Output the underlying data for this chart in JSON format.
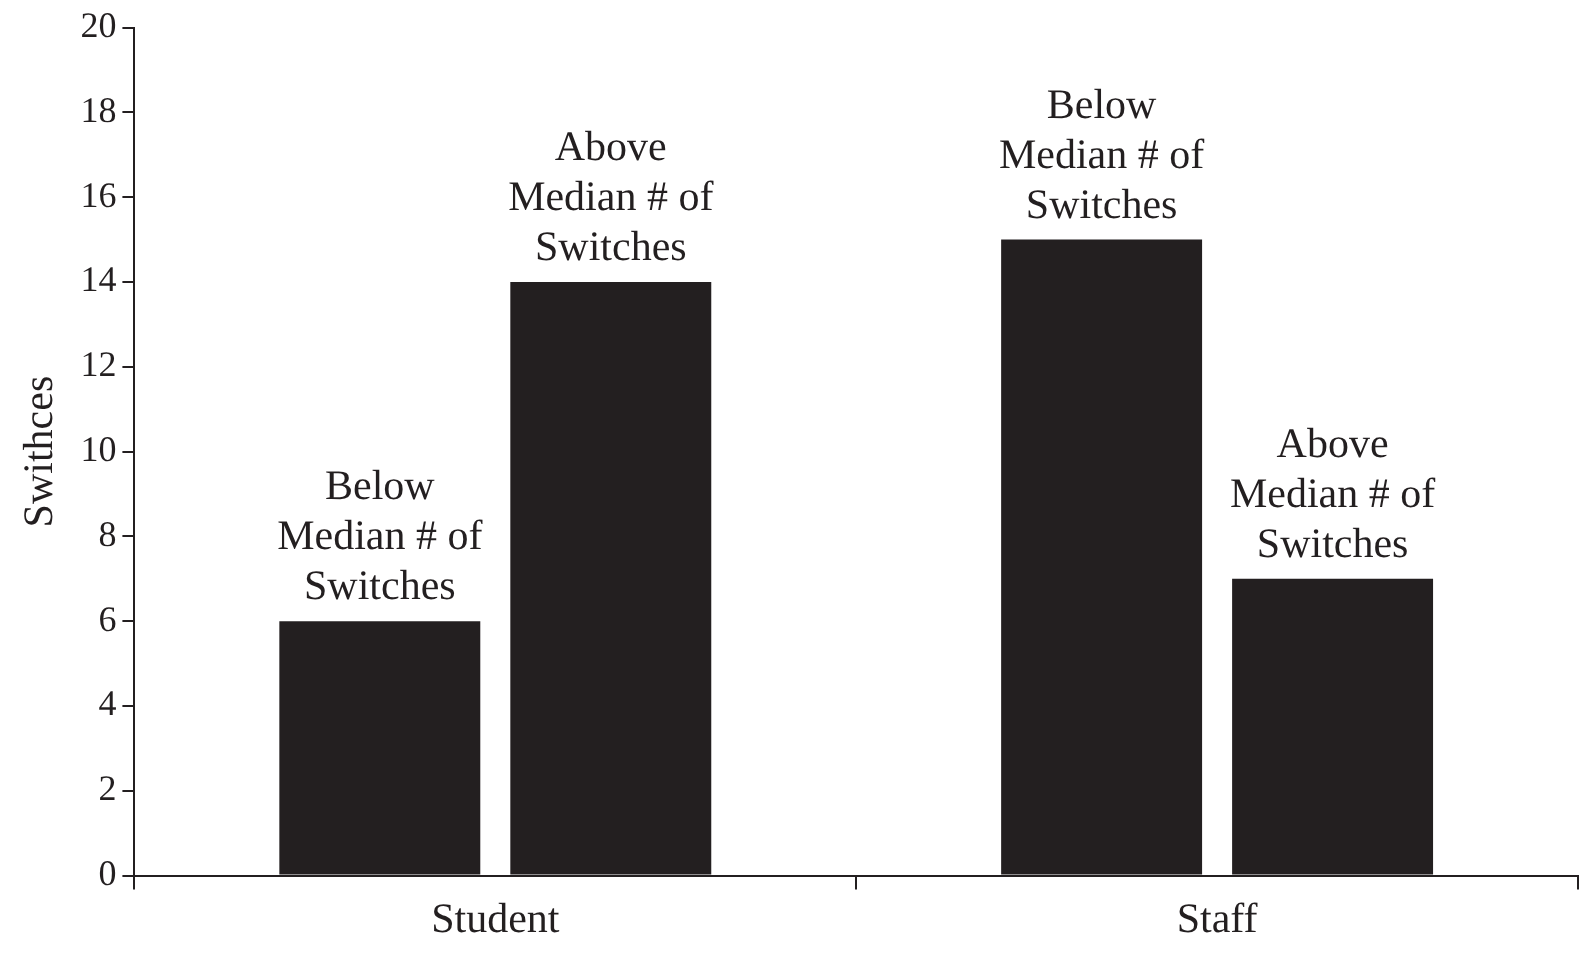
{
  "chart_data": {
    "type": "bar",
    "ylabel": "Swithces",
    "categories": [
      "Student",
      "Staff"
    ],
    "series": [
      {
        "name": "Below Median # of Switches",
        "color": "#231f20",
        "values": [
          6,
          15
        ]
      },
      {
        "name": "Above Median # of Switches",
        "color": "#231f20",
        "values": [
          14,
          7
        ]
      }
    ],
    "ylim": [
      0,
      20
    ],
    "yticks": [
      0,
      2,
      4,
      6,
      8,
      10,
      12,
      14,
      16,
      18,
      20
    ],
    "grid": false,
    "legend": false
  }
}
